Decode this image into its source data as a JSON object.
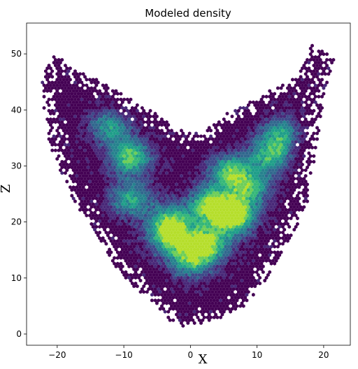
{
  "chart_data": {
    "type": "hexbin",
    "title": "Modeled density",
    "xlabel": "X",
    "ylabel": "Z",
    "xlim": [
      -24.6,
      24.0
    ],
    "ylim": [
      -2.0,
      55.5
    ],
    "x_ticks": [
      -20,
      -10,
      0,
      10,
      20
    ],
    "y_ticks": [
      0,
      10,
      20,
      30,
      40,
      50
    ],
    "grid": false,
    "legend": "none",
    "colormap": "viridis",
    "colors": [
      "#440154",
      "#482878",
      "#3e4989",
      "#31688e",
      "#26828e",
      "#1f9e89",
      "#35b779",
      "#6ece58",
      "#b5de2b"
    ],
    "hotspots": [
      {
        "x": 6.5,
        "y": 21.0,
        "level": 1.0
      },
      {
        "x": 3.0,
        "y": 23.0,
        "level": 0.85
      },
      {
        "x": 2.5,
        "y": 16.0,
        "level": 0.85
      },
      {
        "x": -9.0,
        "y": 31.5,
        "level": 0.75
      },
      {
        "x": -3.0,
        "y": 20.0,
        "level": 0.7
      },
      {
        "x": 6.0,
        "y": 29.0,
        "level": 0.7
      },
      {
        "x": 12.0,
        "y": 32.0,
        "level": 0.65
      },
      {
        "x": -3.0,
        "y": 17.0,
        "level": 0.65
      },
      {
        "x": 0.0,
        "y": 13.0,
        "level": 0.6
      },
      {
        "x": -9.0,
        "y": 24.0,
        "level": 0.6
      },
      {
        "x": 9.0,
        "y": 26.0,
        "level": 0.6
      },
      {
        "x": 14.0,
        "y": 36.0,
        "level": 0.55
      },
      {
        "x": -12.0,
        "y": 37.0,
        "level": 0.55
      }
    ],
    "outline": [
      [
        -22.5,
        45
      ],
      [
        -20.5,
        50
      ],
      [
        -18,
        48
      ],
      [
        -15,
        46
      ],
      [
        -12,
        44
      ],
      [
        -9,
        42
      ],
      [
        -6,
        40
      ],
      [
        -3,
        37.5
      ],
      [
        0,
        36
      ],
      [
        2,
        36
      ],
      [
        5,
        39
      ],
      [
        8,
        41
      ],
      [
        11,
        43
      ],
      [
        14,
        44.5
      ],
      [
        16,
        46.5
      ],
      [
        18.5,
        52
      ],
      [
        21.5,
        49
      ],
      [
        20,
        42
      ],
      [
        19,
        34
      ],
      [
        18,
        25
      ],
      [
        16,
        19
      ],
      [
        13,
        13
      ],
      [
        11,
        9
      ],
      [
        8,
        5
      ],
      [
        5,
        3
      ],
      [
        2,
        2
      ],
      [
        -2,
        1
      ],
      [
        -5,
        5
      ],
      [
        -9,
        9
      ],
      [
        -12,
        13
      ],
      [
        -15,
        19
      ],
      [
        -18,
        25
      ],
      [
        -21,
        33
      ],
      [
        -22,
        40
      ]
    ]
  }
}
